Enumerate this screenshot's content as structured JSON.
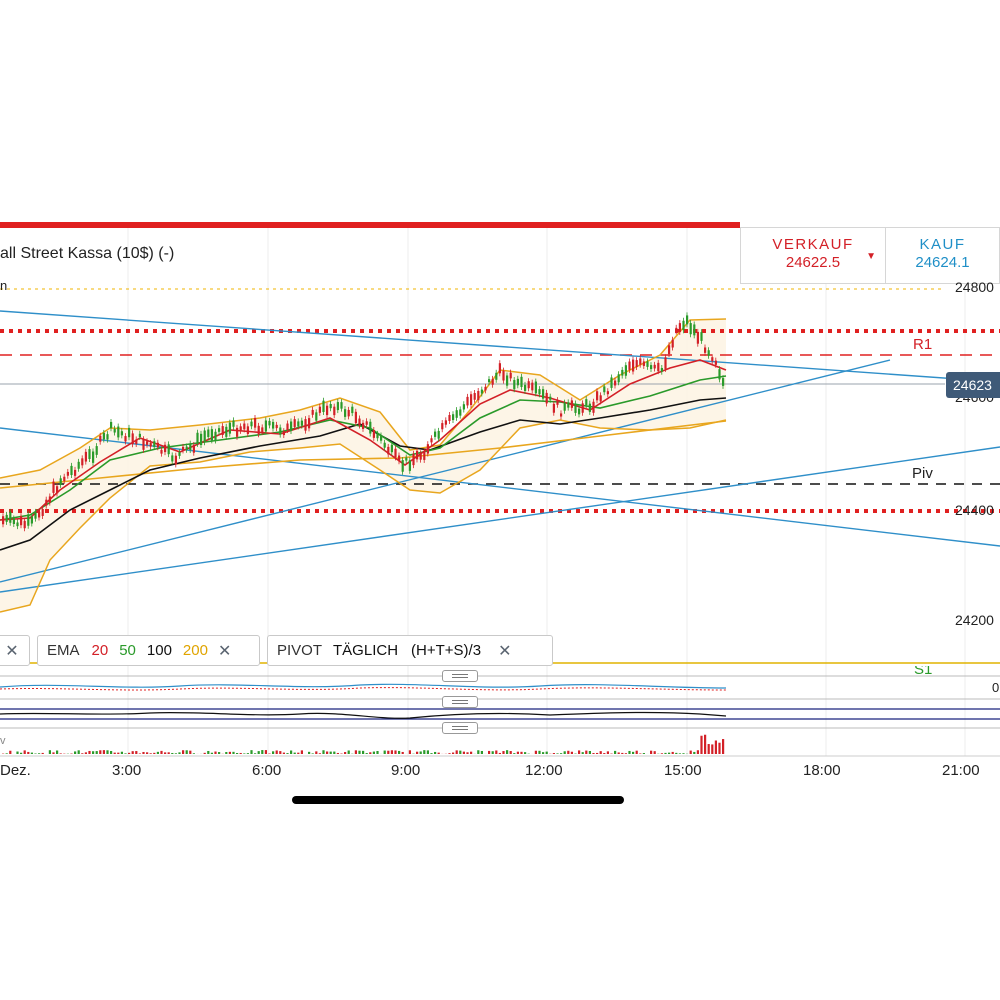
{
  "instrument": {
    "title": "all Street Kassa (10$) (-)",
    "timeframe_fragment": "n"
  },
  "quote": {
    "sell_label": "VERKAUF",
    "sell_price": "24622.5",
    "buy_label": "KAUF",
    "buy_price": "24624.1",
    "sell_color": "#d32027",
    "buy_color": "#1f8fc7"
  },
  "price_axis": {
    "labels": [
      "24800",
      "24600",
      "24400",
      "24200"
    ],
    "current_price_tag": "24623",
    "current_tag_color": "#3f5a78"
  },
  "pivot_levels": {
    "r1_label": "R1",
    "piv_label": "Piv",
    "s1_label": "S1"
  },
  "indicators": {
    "bollinger_close": "✕",
    "ema": {
      "name": "EMA",
      "periods": [
        "20",
        "50",
        "100",
        "200"
      ],
      "colors": [
        "#d32027",
        "#2a9a2a",
        "#111111",
        "#e0a400"
      ],
      "close": "✕"
    },
    "pivot": {
      "name": "PIVOT",
      "period": "TÄGLICH",
      "formula": "(H+T+S)/3",
      "close": "✕"
    }
  },
  "sub_panels": {
    "macd_axis_label": "0",
    "volume_label": "v"
  },
  "time_axis": {
    "labels": [
      "Dez.",
      "3:00",
      "6:00",
      "9:00",
      "12:00",
      "15:00",
      "18:00",
      "21:00"
    ]
  },
  "icons": {
    "close": "close-icon",
    "grip": "drag-handle-icon",
    "sell_caret": "caret-down-icon"
  }
}
